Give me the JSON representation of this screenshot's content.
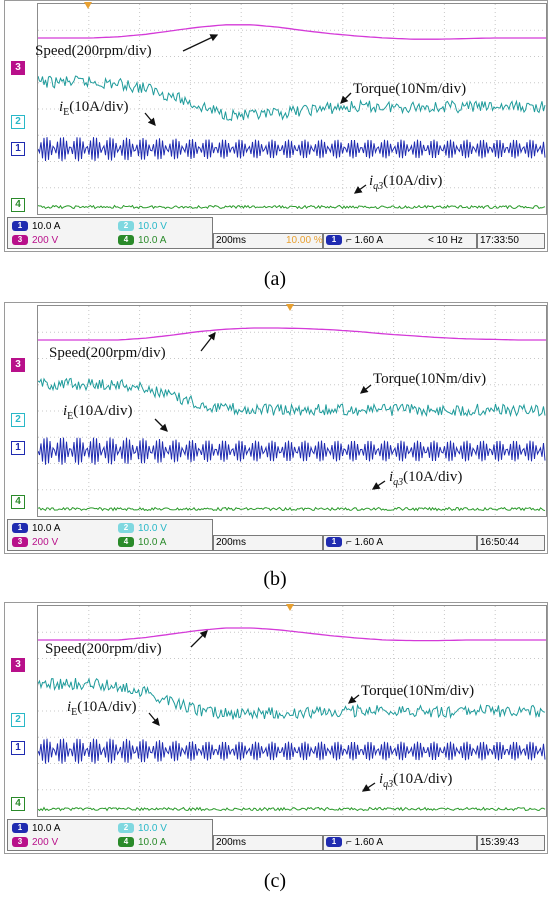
{
  "chart_data": [
    {
      "type": "line",
      "panel_label": "a",
      "series": [
        {
          "name": "Speed(200rpm/div)",
          "values": [
            0.0,
            0.0,
            0.0,
            0.02,
            0.06,
            0.12,
            0.18,
            0.22,
            0.22,
            0.18,
            0.12,
            0.07,
            0.03,
            0.0,
            -0.02,
            -0.02,
            -0.01,
            0.0,
            0.0,
            0.0
          ]
        },
        {
          "name": "Torque(10Nm/div)",
          "values": [
            0.0,
            0.0,
            0.0,
            -0.05,
            -0.15,
            -0.35,
            -0.6,
            -0.8,
            -0.85,
            -0.8,
            -0.7,
            -0.65,
            -0.62,
            -0.62,
            -0.62,
            -0.62,
            -0.62,
            -0.62,
            -0.62,
            -0.62
          ]
        },
        {
          "name": "iE(10A/div)",
          "values": [
            0.55,
            0.55,
            0.55,
            0.5,
            0.45,
            0.4,
            0.35,
            0.32,
            0.3,
            0.3,
            0.3,
            0.3,
            0.3,
            0.3,
            0.3,
            0.3,
            0.3,
            0.3,
            0.3,
            0.3
          ]
        },
        {
          "name": "iq3(10A/div)",
          "values": [
            0.1,
            0.1,
            0.1,
            0.1,
            0.1,
            0.1,
            0.1,
            0.1,
            0.1,
            0.1,
            0.1,
            0.1,
            0.1,
            0.1,
            0.1,
            0.1,
            0.1,
            0.1,
            0.1,
            0.1
          ]
        }
      ],
      "status": {
        "ch1": "10.0 A",
        "ch2": "10.0 V",
        "ch3": "200 V",
        "ch4": "10.0 A",
        "timebase": "200ms",
        "trig_pos": "10.00 %",
        "trig_level": "1.60 A",
        "freq": "< 10 Hz",
        "time": "17:33:50"
      }
    },
    {
      "type": "line",
      "panel_label": "b",
      "series": [
        {
          "name": "Speed(200rpm/div)",
          "values": [
            0.0,
            0.0,
            0.0,
            0.0,
            0.03,
            0.08,
            0.14,
            0.18,
            0.2,
            0.2,
            0.19,
            0.17,
            0.14,
            0.1,
            0.07,
            0.04,
            0.02,
            0.01,
            0.0,
            0.0
          ]
        },
        {
          "name": "Torque(10Nm/div)",
          "values": [
            0.0,
            0.0,
            0.0,
            0.0,
            -0.1,
            -0.3,
            -0.5,
            -0.6,
            -0.65,
            -0.65,
            -0.65,
            -0.65,
            -0.65,
            -0.65,
            -0.65,
            -0.65,
            -0.65,
            -0.65,
            -0.65,
            -0.65
          ]
        },
        {
          "name": "iE(10A/div)",
          "values": [
            0.7,
            0.7,
            0.7,
            0.68,
            0.6,
            0.5,
            0.45,
            0.42,
            0.4,
            0.4,
            0.4,
            0.4,
            0.4,
            0.4,
            0.4,
            0.4,
            0.4,
            0.4,
            0.4,
            0.4
          ]
        },
        {
          "name": "iq3(10A/div)",
          "values": [
            0.12,
            0.12,
            0.12,
            0.12,
            0.12,
            0.12,
            0.12,
            0.12,
            0.12,
            0.12,
            0.12,
            0.12,
            0.12,
            0.12,
            0.12,
            0.12,
            0.12,
            0.12,
            0.12,
            0.12
          ]
        }
      ],
      "status": {
        "ch1": "10.0 A",
        "ch2": "10.0 V",
        "ch3": "200 V",
        "ch4": "10.0 A",
        "timebase": "200ms",
        "trig_level": "1.60 A",
        "time": "16:50:44"
      }
    },
    {
      "type": "line",
      "panel_label": "c",
      "series": [
        {
          "name": "Speed(200rpm/div)",
          "values": [
            0.0,
            0.0,
            0.0,
            0.0,
            0.04,
            0.1,
            0.16,
            0.2,
            0.2,
            0.17,
            0.12,
            0.07,
            0.03,
            0.0,
            -0.01,
            -0.01,
            0.0,
            0.0,
            0.0,
            0.0
          ]
        },
        {
          "name": "Torque(10Nm/div)",
          "values": [
            0.0,
            0.0,
            0.0,
            -0.05,
            -0.2,
            -0.45,
            -0.65,
            -0.75,
            -0.75,
            -0.72,
            -0.7,
            -0.68,
            -0.68,
            -0.68,
            -0.68,
            -0.68,
            -0.68,
            -0.68,
            -0.68,
            -0.68
          ]
        },
        {
          "name": "iE(10A/div)",
          "values": [
            0.6,
            0.6,
            0.6,
            0.58,
            0.5,
            0.4,
            0.32,
            0.3,
            0.3,
            0.3,
            0.3,
            0.3,
            0.3,
            0.3,
            0.3,
            0.3,
            0.3,
            0.3,
            0.3,
            0.3
          ]
        },
        {
          "name": "iq3(10A/div)",
          "values": [
            0.1,
            0.1,
            0.1,
            0.1,
            0.1,
            0.1,
            0.1,
            0.1,
            0.1,
            0.1,
            0.1,
            0.1,
            0.1,
            0.1,
            0.1,
            0.1,
            0.1,
            0.1,
            0.1,
            0.1
          ]
        }
      ],
      "status": {
        "ch1": "10.0 A",
        "ch2": "10.0 V",
        "ch3": "200 V",
        "ch4": "10.0 A",
        "timebase": "200ms",
        "trig_level": "1.60 A",
        "time": "15:39:43"
      }
    }
  ],
  "labels": {
    "speed": "Speed(200rpm/div)",
    "torque": "Torque(10Nm/div)",
    "ie_base": "i",
    "ie_sub": "E",
    "ie_rest": "(10A/div)",
    "iq3_base": "i",
    "iq3_sub": "q3",
    "iq3_rest": "(10A/div)"
  },
  "channel_markers": [
    "3",
    "2",
    "1",
    "4"
  ],
  "captions": [
    "(a)",
    "(b)",
    "(c)"
  ],
  "colors": {
    "speed": "#d43ad8",
    "torque": "#1f9b9b",
    "ie": "#1f2bb0",
    "iq3": "#2a9a2a",
    "grid": "#c8c8c8"
  }
}
